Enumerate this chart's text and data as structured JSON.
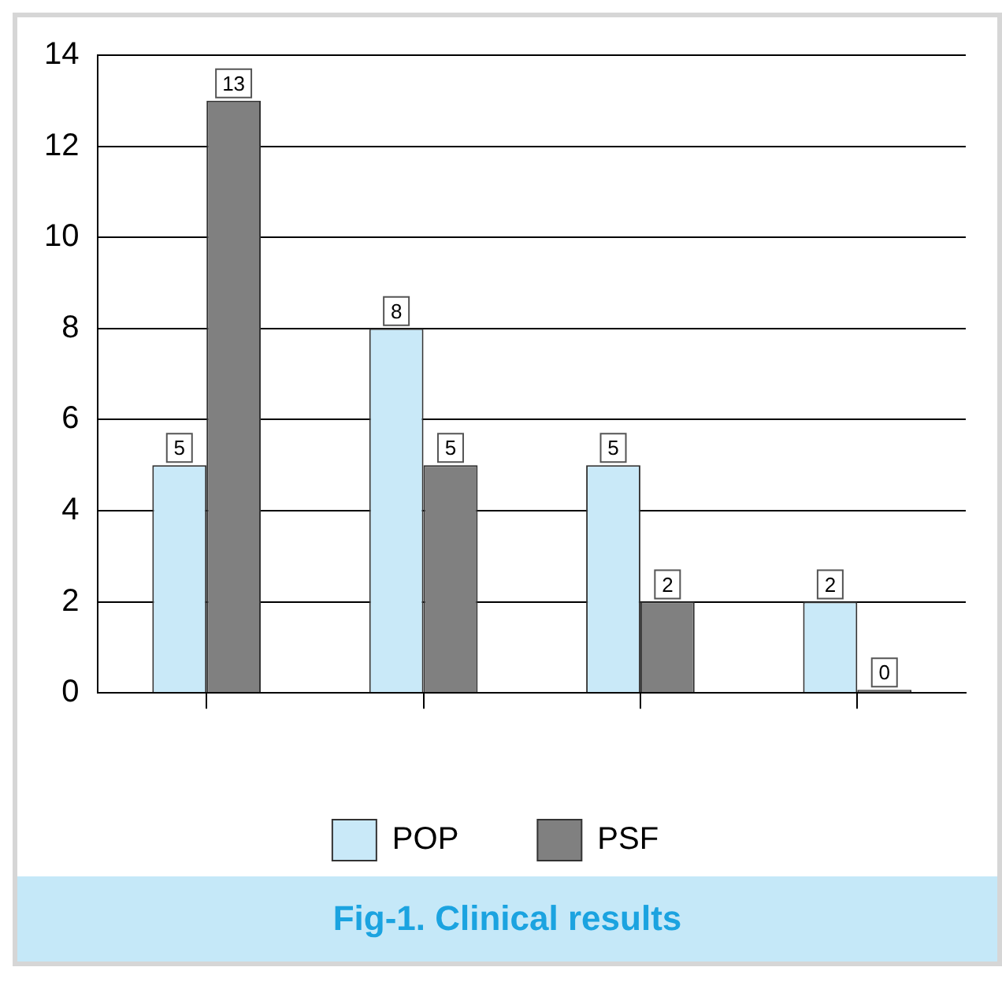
{
  "chart_data": {
    "type": "bar",
    "title": "Fig-1. Clinical results",
    "categories": [
      null,
      null,
      null,
      null
    ],
    "series": [
      {
        "name": "POP",
        "color": "#c9e9f8",
        "values": [
          5,
          8,
          5,
          2
        ]
      },
      {
        "name": "PSF",
        "color": "#808080",
        "values": [
          13,
          5,
          2,
          0
        ]
      }
    ],
    "ylim": [
      0,
      14
    ],
    "yticks": [
      0,
      2,
      4,
      6,
      8,
      10,
      12,
      14
    ],
    "grid": "y",
    "legend": "bottom",
    "data_labels": true
  }
}
